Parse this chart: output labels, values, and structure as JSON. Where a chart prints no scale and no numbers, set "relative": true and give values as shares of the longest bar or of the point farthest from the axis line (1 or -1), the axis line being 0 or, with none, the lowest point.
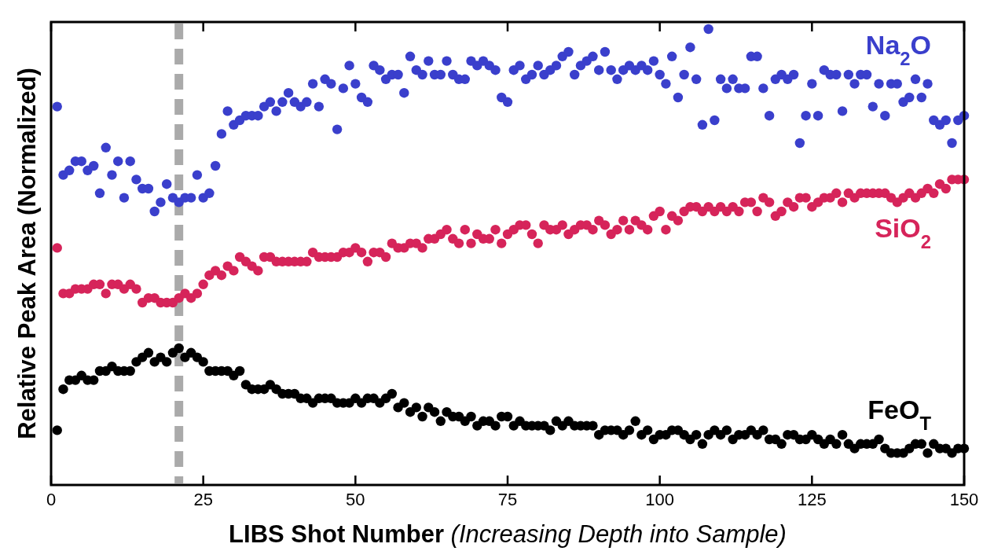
{
  "chart_data": {
    "type": "scatter",
    "relative": true,
    "xlabel": "LIBS Shot Number (Increasing Depth into Sample)",
    "ylabel": "Relative Peak Area (Normalized)",
    "xlim": [
      0,
      150
    ],
    "xticks": [
      0,
      25,
      50,
      75,
      100,
      125,
      150
    ],
    "marker": "circle",
    "x": [
      1,
      2,
      3,
      4,
      5,
      6,
      7,
      8,
      9,
      10,
      11,
      12,
      13,
      14,
      15,
      16,
      17,
      18,
      19,
      20,
      21,
      22,
      23,
      24,
      25,
      26,
      27,
      28,
      29,
      30,
      31,
      32,
      33,
      34,
      35,
      36,
      37,
      38,
      39,
      40,
      41,
      42,
      43,
      44,
      45,
      46,
      47,
      48,
      49,
      50,
      51,
      52,
      53,
      54,
      55,
      56,
      57,
      58,
      59,
      60,
      61,
      62,
      63,
      64,
      65,
      66,
      67,
      68,
      69,
      70,
      71,
      72,
      73,
      74,
      75,
      76,
      77,
      78,
      79,
      80,
      81,
      82,
      83,
      84,
      85,
      86,
      87,
      88,
      89,
      90,
      91,
      92,
      93,
      94,
      95,
      96,
      97,
      98,
      99,
      100,
      101,
      102,
      103,
      104,
      105,
      106,
      107,
      108,
      109,
      110,
      111,
      112,
      113,
      114,
      115,
      116,
      117,
      118,
      119,
      120,
      121,
      122,
      123,
      124,
      125,
      126,
      127,
      128,
      129,
      130,
      131,
      132,
      133,
      134,
      135,
      136,
      137,
      138,
      139,
      140,
      141,
      142,
      143,
      144,
      145,
      146,
      147,
      148,
      149,
      150
    ],
    "series": [
      {
        "name": "Na$_{2}$O",
        "color": "#3a3fcc",
        "values": [
          0.83,
          0.68,
          0.69,
          0.71,
          0.71,
          0.69,
          0.7,
          0.64,
          0.74,
          0.68,
          0.71,
          0.63,
          0.71,
          0.67,
          0.65,
          0.65,
          0.6,
          0.62,
          0.66,
          0.63,
          0.62,
          0.63,
          0.63,
          0.68,
          0.63,
          0.64,
          0.7,
          0.77,
          0.82,
          0.79,
          0.8,
          0.81,
          0.81,
          0.81,
          0.83,
          0.84,
          0.82,
          0.84,
          0.86,
          0.84,
          0.83,
          0.84,
          0.88,
          0.83,
          0.89,
          0.88,
          0.78,
          0.87,
          0.92,
          0.88,
          0.85,
          0.84,
          0.92,
          0.91,
          0.89,
          0.9,
          0.9,
          0.86,
          0.94,
          0.91,
          0.9,
          0.93,
          0.9,
          0.9,
          0.93,
          0.9,
          0.89,
          0.89,
          0.93,
          0.92,
          0.93,
          0.92,
          0.91,
          0.85,
          0.84,
          0.91,
          0.92,
          0.89,
          0.9,
          0.92,
          0.9,
          0.91,
          0.92,
          0.94,
          0.95,
          0.9,
          0.92,
          0.93,
          0.94,
          0.91,
          0.95,
          0.91,
          0.89,
          0.91,
          0.92,
          0.91,
          0.92,
          0.91,
          0.93,
          0.9,
          0.88,
          0.94,
          0.85,
          0.9,
          0.96,
          0.89,
          0.79,
          1,
          0.8,
          0.89,
          0.87,
          0.89,
          0.87,
          0.87,
          0.94,
          0.94,
          0.87,
          0.81,
          0.89,
          0.9,
          0.89,
          0.9,
          0.75,
          0.81,
          0.88,
          0.81,
          0.91,
          0.9,
          0.9,
          0.82,
          0.9,
          0.88,
          0.9,
          0.9,
          0.83,
          0.88,
          0.81,
          0.88,
          0.88,
          0.84,
          0.85,
          0.89,
          0.85,
          0.88,
          0.8,
          0.79,
          0.8,
          0.75,
          0.8,
          0.81
        ]
      },
      {
        "name": "SiO$_{2}$",
        "color": "#d6245a",
        "values": [
          0.52,
          0.42,
          0.42,
          0.43,
          0.43,
          0.43,
          0.44,
          0.44,
          0.42,
          0.44,
          0.44,
          0.43,
          0.44,
          0.43,
          0.4,
          0.41,
          0.41,
          0.4,
          0.4,
          0.4,
          0.41,
          0.42,
          0.41,
          0.42,
          0.44,
          0.46,
          0.47,
          0.46,
          0.48,
          0.47,
          0.5,
          0.49,
          0.48,
          0.47,
          0.5,
          0.5,
          0.49,
          0.49,
          0.49,
          0.49,
          0.49,
          0.49,
          0.51,
          0.5,
          0.5,
          0.5,
          0.5,
          0.51,
          0.51,
          0.52,
          0.51,
          0.49,
          0.51,
          0.51,
          0.5,
          0.53,
          0.52,
          0.52,
          0.53,
          0.53,
          0.52,
          0.54,
          0.54,
          0.55,
          0.56,
          0.54,
          0.53,
          0.56,
          0.53,
          0.55,
          0.54,
          0.54,
          0.56,
          0.53,
          0.55,
          0.56,
          0.57,
          0.57,
          0.55,
          0.53,
          0.57,
          0.56,
          0.56,
          0.57,
          0.55,
          0.56,
          0.57,
          0.57,
          0.56,
          0.58,
          0.57,
          0.55,
          0.56,
          0.58,
          0.56,
          0.58,
          0.57,
          0.56,
          0.59,
          0.6,
          0.56,
          0.59,
          0.58,
          0.6,
          0.61,
          0.61,
          0.6,
          0.61,
          0.6,
          0.61,
          0.6,
          0.61,
          0.6,
          0.62,
          0.62,
          0.6,
          0.63,
          0.62,
          0.59,
          0.6,
          0.62,
          0.61,
          0.63,
          0.63,
          0.61,
          0.62,
          0.63,
          0.63,
          0.64,
          0.62,
          0.64,
          0.63,
          0.64,
          0.64,
          0.64,
          0.64,
          0.64,
          0.63,
          0.62,
          0.63,
          0.64,
          0.63,
          0.64,
          0.65,
          0.64,
          0.66,
          0.65,
          0.67,
          0.67,
          0.67
        ]
      },
      {
        "name": "FeO$_{T}$",
        "color": "#000000",
        "values": [
          0.12,
          0.21,
          0.23,
          0.23,
          0.24,
          0.23,
          0.23,
          0.25,
          0.25,
          0.26,
          0.25,
          0.25,
          0.25,
          0.27,
          0.28,
          0.29,
          0.27,
          0.28,
          0.27,
          0.29,
          0.3,
          0.28,
          0.29,
          0.28,
          0.27,
          0.25,
          0.25,
          0.25,
          0.25,
          0.24,
          0.25,
          0.22,
          0.21,
          0.21,
          0.21,
          0.22,
          0.21,
          0.2,
          0.2,
          0.2,
          0.19,
          0.19,
          0.18,
          0.19,
          0.19,
          0.19,
          0.18,
          0.18,
          0.18,
          0.19,
          0.18,
          0.19,
          0.19,
          0.18,
          0.19,
          0.2,
          0.17,
          0.18,
          0.16,
          0.17,
          0.15,
          0.17,
          0.16,
          0.14,
          0.16,
          0.15,
          0.15,
          0.14,
          0.15,
          0.13,
          0.14,
          0.14,
          0.13,
          0.15,
          0.15,
          0.13,
          0.14,
          0.13,
          0.13,
          0.13,
          0.13,
          0.12,
          0.14,
          0.13,
          0.14,
          0.13,
          0.13,
          0.13,
          0.13,
          0.11,
          0.12,
          0.12,
          0.12,
          0.11,
          0.12,
          0.14,
          0.11,
          0.12,
          0.1,
          0.11,
          0.11,
          0.12,
          0.12,
          0.11,
          0.1,
          0.11,
          0.09,
          0.11,
          0.12,
          0.11,
          0.12,
          0.1,
          0.11,
          0.11,
          0.12,
          0.11,
          0.12,
          0.1,
          0.1,
          0.09,
          0.11,
          0.11,
          0.1,
          0.1,
          0.11,
          0.1,
          0.09,
          0.1,
          0.09,
          0.11,
          0.09,
          0.08,
          0.09,
          0.09,
          0.09,
          0.1,
          0.08,
          0.07,
          0.07,
          0.07,
          0.08,
          0.09,
          0.09,
          0.07,
          0.09,
          0.08,
          0.08,
          0.07,
          0.08,
          0.08
        ]
      }
    ],
    "ref_lines": [
      {
        "axis": "x",
        "value": 21,
        "color": "#aaaaaa",
        "line_style": "dashed"
      }
    ]
  }
}
